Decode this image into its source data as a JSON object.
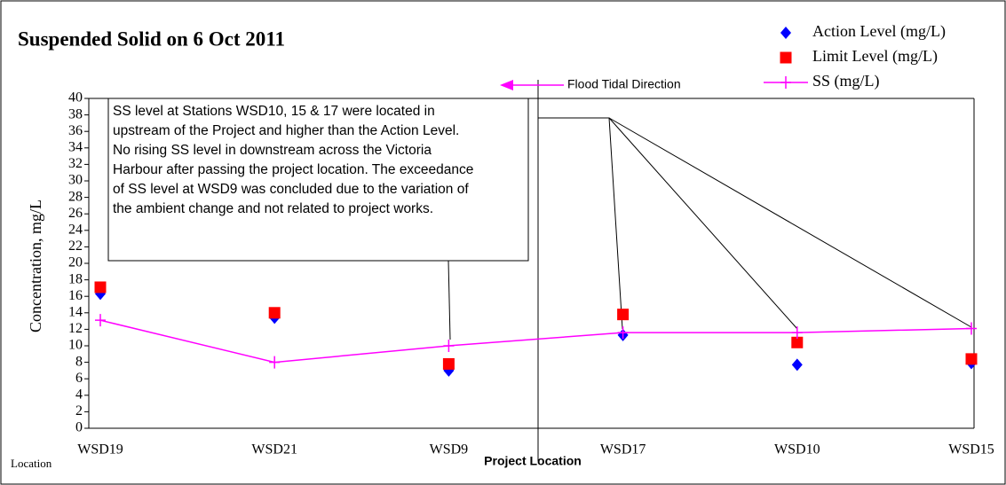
{
  "chart_data": {
    "type": "line",
    "title": "Suspended Solid on 6 Oct 2011",
    "y_label": "Concentration, mg/L",
    "x_label": "Location",
    "categories": [
      "WSD19",
      "WSD21",
      "WSD9",
      "WSD17",
      "WSD10",
      "WSD15"
    ],
    "series": [
      {
        "name": "Action Level (mg/L)",
        "color": "#0000ff",
        "marker": "diamond",
        "values": [
          16.3,
          13.4,
          7.0,
          11.3,
          7.7,
          7.9
        ]
      },
      {
        "name": "Limit Level (mg/L)",
        "color": "#ff0000",
        "marker": "square",
        "values": [
          17.1,
          14.0,
          7.8,
          13.8,
          10.4,
          8.4
        ]
      },
      {
        "name": "SS (mg/L)",
        "color": "#ff00ff",
        "marker": "plus",
        "values": [
          13.1,
          8.0,
          10.0,
          11.6,
          11.6,
          12.1
        ]
      }
    ],
    "ylim": [
      0,
      40
    ],
    "yticks": [
      0,
      2,
      4,
      6,
      8,
      10,
      12,
      14,
      16,
      18,
      20,
      22,
      24,
      26,
      28,
      30,
      32,
      34,
      36,
      38,
      40
    ],
    "legend": "top-right",
    "annotation": [
      "SS level at Stations WSD10, 15 & 17 were located in",
      "upstream of the Project and higher than the Action Level.",
      "No rising SS level in downstream across the Victoria",
      "Harbour after passing the project location. The exceedance",
      "of SS level at WSD9 was concluded due to the variation of",
      "the ambient change and not related to project works."
    ],
    "project_label": "Project Location",
    "flow_label": "Flood Tidal Direction"
  }
}
